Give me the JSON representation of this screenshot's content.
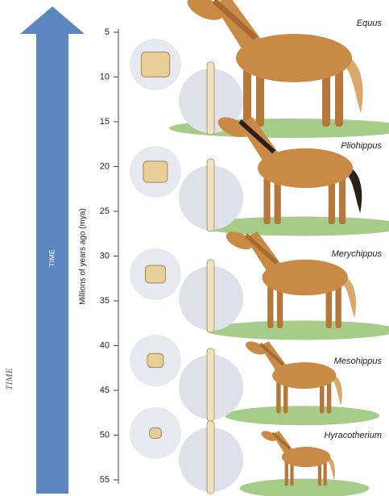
{
  "side_label": "TIME",
  "arrow_label": "TIME",
  "axis": {
    "title": "Millions of years ago (mya)",
    "ticks": [
      5,
      10,
      15,
      20,
      25,
      30,
      35,
      40,
      45,
      50,
      55
    ]
  },
  "species": [
    {
      "name": "Equus"
    },
    {
      "name": "Pliohippus"
    },
    {
      "name": "Merychippus"
    },
    {
      "name": "Mesohippus"
    },
    {
      "name": "Hyracotherium"
    }
  ]
}
